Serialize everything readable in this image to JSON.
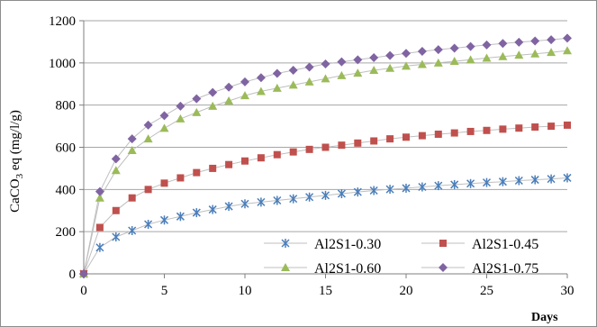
{
  "chart_data": {
    "type": "line",
    "xlabel": "Days",
    "ylabel": "CaCO3 eq (mg/l/g)",
    "ylabel_main": "CaCO",
    "ylabel_sub": "3",
    "ylabel_rest": " eq (mg/l/g)",
    "xlim": [
      0,
      30
    ],
    "ylim": [
      0,
      1200
    ],
    "xticks": [
      0,
      5,
      10,
      15,
      20,
      25,
      30
    ],
    "yticks": [
      0,
      200,
      400,
      600,
      800,
      1000,
      1200
    ],
    "grid": "horizontal",
    "legend_position": "bottom-right",
    "x": [
      0,
      1,
      2,
      3,
      4,
      5,
      6,
      7,
      8,
      9,
      10,
      11,
      12,
      13,
      14,
      15,
      16,
      17,
      18,
      19,
      20,
      21,
      22,
      23,
      24,
      25,
      26,
      27,
      28,
      29,
      30
    ],
    "series": [
      {
        "name": "Al2S1-0.30",
        "marker": "star",
        "color": "#4a7ebb",
        "values": [
          0,
          125,
          175,
          205,
          235,
          255,
          272,
          290,
          305,
          320,
          332,
          340,
          348,
          356,
          364,
          372,
          380,
          388,
          395,
          401,
          406,
          412,
          418,
          423,
          428,
          433,
          437,
          442,
          446,
          450,
          455
        ]
      },
      {
        "name": "Al2S1-0.45",
        "marker": "square",
        "color": "#c0504d",
        "values": [
          0,
          220,
          300,
          360,
          400,
          430,
          455,
          480,
          500,
          518,
          535,
          550,
          565,
          578,
          590,
          600,
          610,
          620,
          630,
          640,
          648,
          655,
          662,
          668,
          675,
          680,
          686,
          691,
          696,
          700,
          705
        ]
      },
      {
        "name": "Al2S1-0.60",
        "marker": "triangle",
        "color": "#9bbb59",
        "values": [
          0,
          360,
          490,
          585,
          640,
          690,
          735,
          765,
          795,
          820,
          845,
          865,
          880,
          895,
          910,
          925,
          940,
          952,
          965,
          975,
          985,
          993,
          1000,
          1008,
          1015,
          1023,
          1030,
          1037,
          1043,
          1050,
          1058
        ]
      },
      {
        "name": "Al2S1-0.75",
        "marker": "diamond",
        "color": "#8064a2",
        "values": [
          0,
          390,
          545,
          640,
          705,
          750,
          795,
          830,
          860,
          885,
          910,
          930,
          950,
          965,
          980,
          995,
          1005,
          1015,
          1025,
          1035,
          1045,
          1055,
          1063,
          1070,
          1078,
          1085,
          1092,
          1098,
          1104,
          1110,
          1117
        ]
      }
    ],
    "curve_color": "#bfbfbf"
  }
}
